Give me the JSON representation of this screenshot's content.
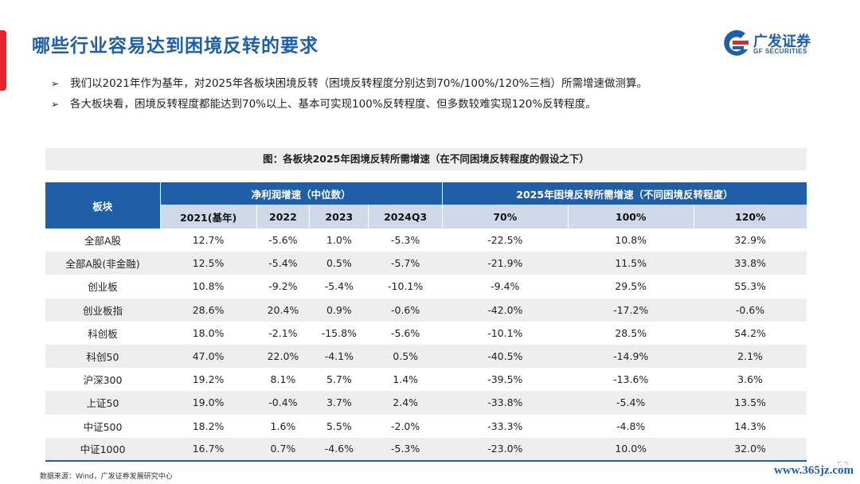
{
  "title": "哪些行业容易达到困境反转的要求",
  "logo": {
    "name": "广发证券",
    "sub": "GF SECURITIES",
    "brand_color": "#1f5fa8"
  },
  "bullets": [
    "我们以2021年作为基年，对2025年各板块困境反转（困境反转程度分别达到70%/100%/120%三档）所需增速做测算。",
    "各大板块看，困境反转程度都能达到70%以上、基本可实现100%反转程度、但多数较难实现120%反转程度。"
  ],
  "figure_caption": "图：各板块2025年困境反转所需增速（在不同困境反转程度的假设之下）",
  "table": {
    "corner": "板块",
    "group1": "净利润增速（中位数）",
    "group2": "2025年困境反转所需增速（不同困境反转程度）",
    "columns": [
      "2021(基年)",
      "2022",
      "2023",
      "2024Q3",
      "70%",
      "100%",
      "120%"
    ],
    "rows": [
      {
        "name": "全部A股",
        "values": [
          "12.7%",
          "-5.6%",
          "1.0%",
          "-5.3%",
          "-22.5%",
          "10.8%",
          "32.9%"
        ]
      },
      {
        "name": "全部A股(非金融)",
        "values": [
          "12.5%",
          "-5.4%",
          "0.5%",
          "-5.7%",
          "-21.9%",
          "11.5%",
          "33.8%"
        ]
      },
      {
        "name": "创业板",
        "values": [
          "10.8%",
          "-9.2%",
          "-5.4%",
          "-10.1%",
          "-9.4%",
          "29.5%",
          "55.3%"
        ]
      },
      {
        "name": "创业板指",
        "values": [
          "28.6%",
          "20.4%",
          "0.9%",
          "-0.6%",
          "-42.0%",
          "-17.2%",
          "-0.6%"
        ]
      },
      {
        "name": "科创板",
        "values": [
          "18.0%",
          "-2.1%",
          "-15.8%",
          "-5.6%",
          "-10.1%",
          "28.5%",
          "54.2%"
        ]
      },
      {
        "name": "科创50",
        "values": [
          "47.0%",
          "22.0%",
          "-4.1%",
          "0.5%",
          "-40.5%",
          "-14.9%",
          "2.1%"
        ]
      },
      {
        "name": "沪深300",
        "values": [
          "19.2%",
          "8.1%",
          "5.7%",
          "1.4%",
          "-39.5%",
          "-13.6%",
          "3.6%"
        ]
      },
      {
        "name": "上证50",
        "values": [
          "19.0%",
          "-0.4%",
          "3.7%",
          "2.4%",
          "-33.8%",
          "-5.4%",
          "13.5%"
        ]
      },
      {
        "name": "中证500",
        "values": [
          "18.2%",
          "1.6%",
          "5.5%",
          "-2.0%",
          "-33.3%",
          "-4.8%",
          "14.3%"
        ]
      },
      {
        "name": "中证1000",
        "values": [
          "16.7%",
          "0.7%",
          "-4.6%",
          "-5.3%",
          "-23.0%",
          "10.0%",
          "32.0%"
        ]
      }
    ]
  },
  "source": "数据来源：Wind，广发证券发展研究中心",
  "watermark": "www.365jz.com",
  "page_number": "53",
  "colors": {
    "accent_red": "#e8262a",
    "header_blue": "#1f5fa8",
    "subheader": "#cfd9ea",
    "row_stripe": "#eeeeee"
  }
}
